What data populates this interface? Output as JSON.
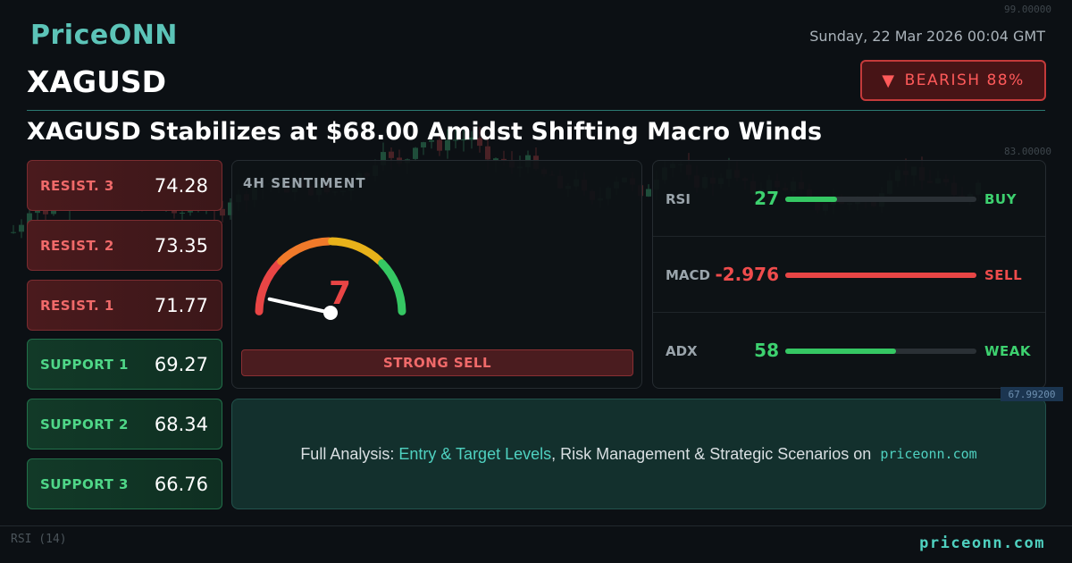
{
  "brand": {
    "logo": "PriceONN",
    "footer_site": "priceonn.com"
  },
  "datetime": "Sunday, 22 Mar 2026 00:04 GMT",
  "symbol": "XAGUSD",
  "signal": {
    "arrow": "▼",
    "label": "BEARISH 88%",
    "color": "#ef4c4c"
  },
  "headline": "XAGUSD Stabilizes at $68.00 Amidst Shifting Macro Winds",
  "levels": {
    "resistance": [
      {
        "label": "RESIST. 3",
        "value": "74.28"
      },
      {
        "label": "RESIST. 2",
        "value": "73.35"
      },
      {
        "label": "RESIST. 1",
        "value": "71.77"
      }
    ],
    "support": [
      {
        "label": "SUPPORT 1",
        "value": "69.27"
      },
      {
        "label": "SUPPORT 2",
        "value": "68.34"
      },
      {
        "label": "SUPPORT 3",
        "value": "66.76"
      }
    ]
  },
  "sentiment": {
    "title": "4H SENTIMENT",
    "score": "7",
    "score_fraction": 0.07,
    "verdict": "STRONG SELL",
    "gauge_colors": [
      "#e84545",
      "#f07a2a",
      "#e8b21a",
      "#35c763"
    ]
  },
  "indicators": [
    {
      "name": "RSI",
      "value": "27",
      "fill_fraction": 0.27,
      "signal": "BUY",
      "value_color": "green",
      "signal_color": "green"
    },
    {
      "name": "MACD",
      "value": "-2.976",
      "fill_fraction": 1.0,
      "signal": "SELL",
      "value_color": "red",
      "signal_color": "red"
    },
    {
      "name": "ADX",
      "value": "58",
      "fill_fraction": 0.58,
      "signal": "WEAK",
      "value_color": "green",
      "signal_color": "green"
    }
  ],
  "cta": {
    "prefix": "Full Analysis: ",
    "highlight": "Entry & Target Levels",
    "middle": ", Risk Management & Strategic Scenarios on ",
    "site": "priceonn.com"
  },
  "backdrop": {
    "axis_labels": [
      "99.00000",
      "83.00000",
      "67.99200"
    ],
    "price_tag": "67.99200",
    "rsi_label": "RSI (14)"
  }
}
